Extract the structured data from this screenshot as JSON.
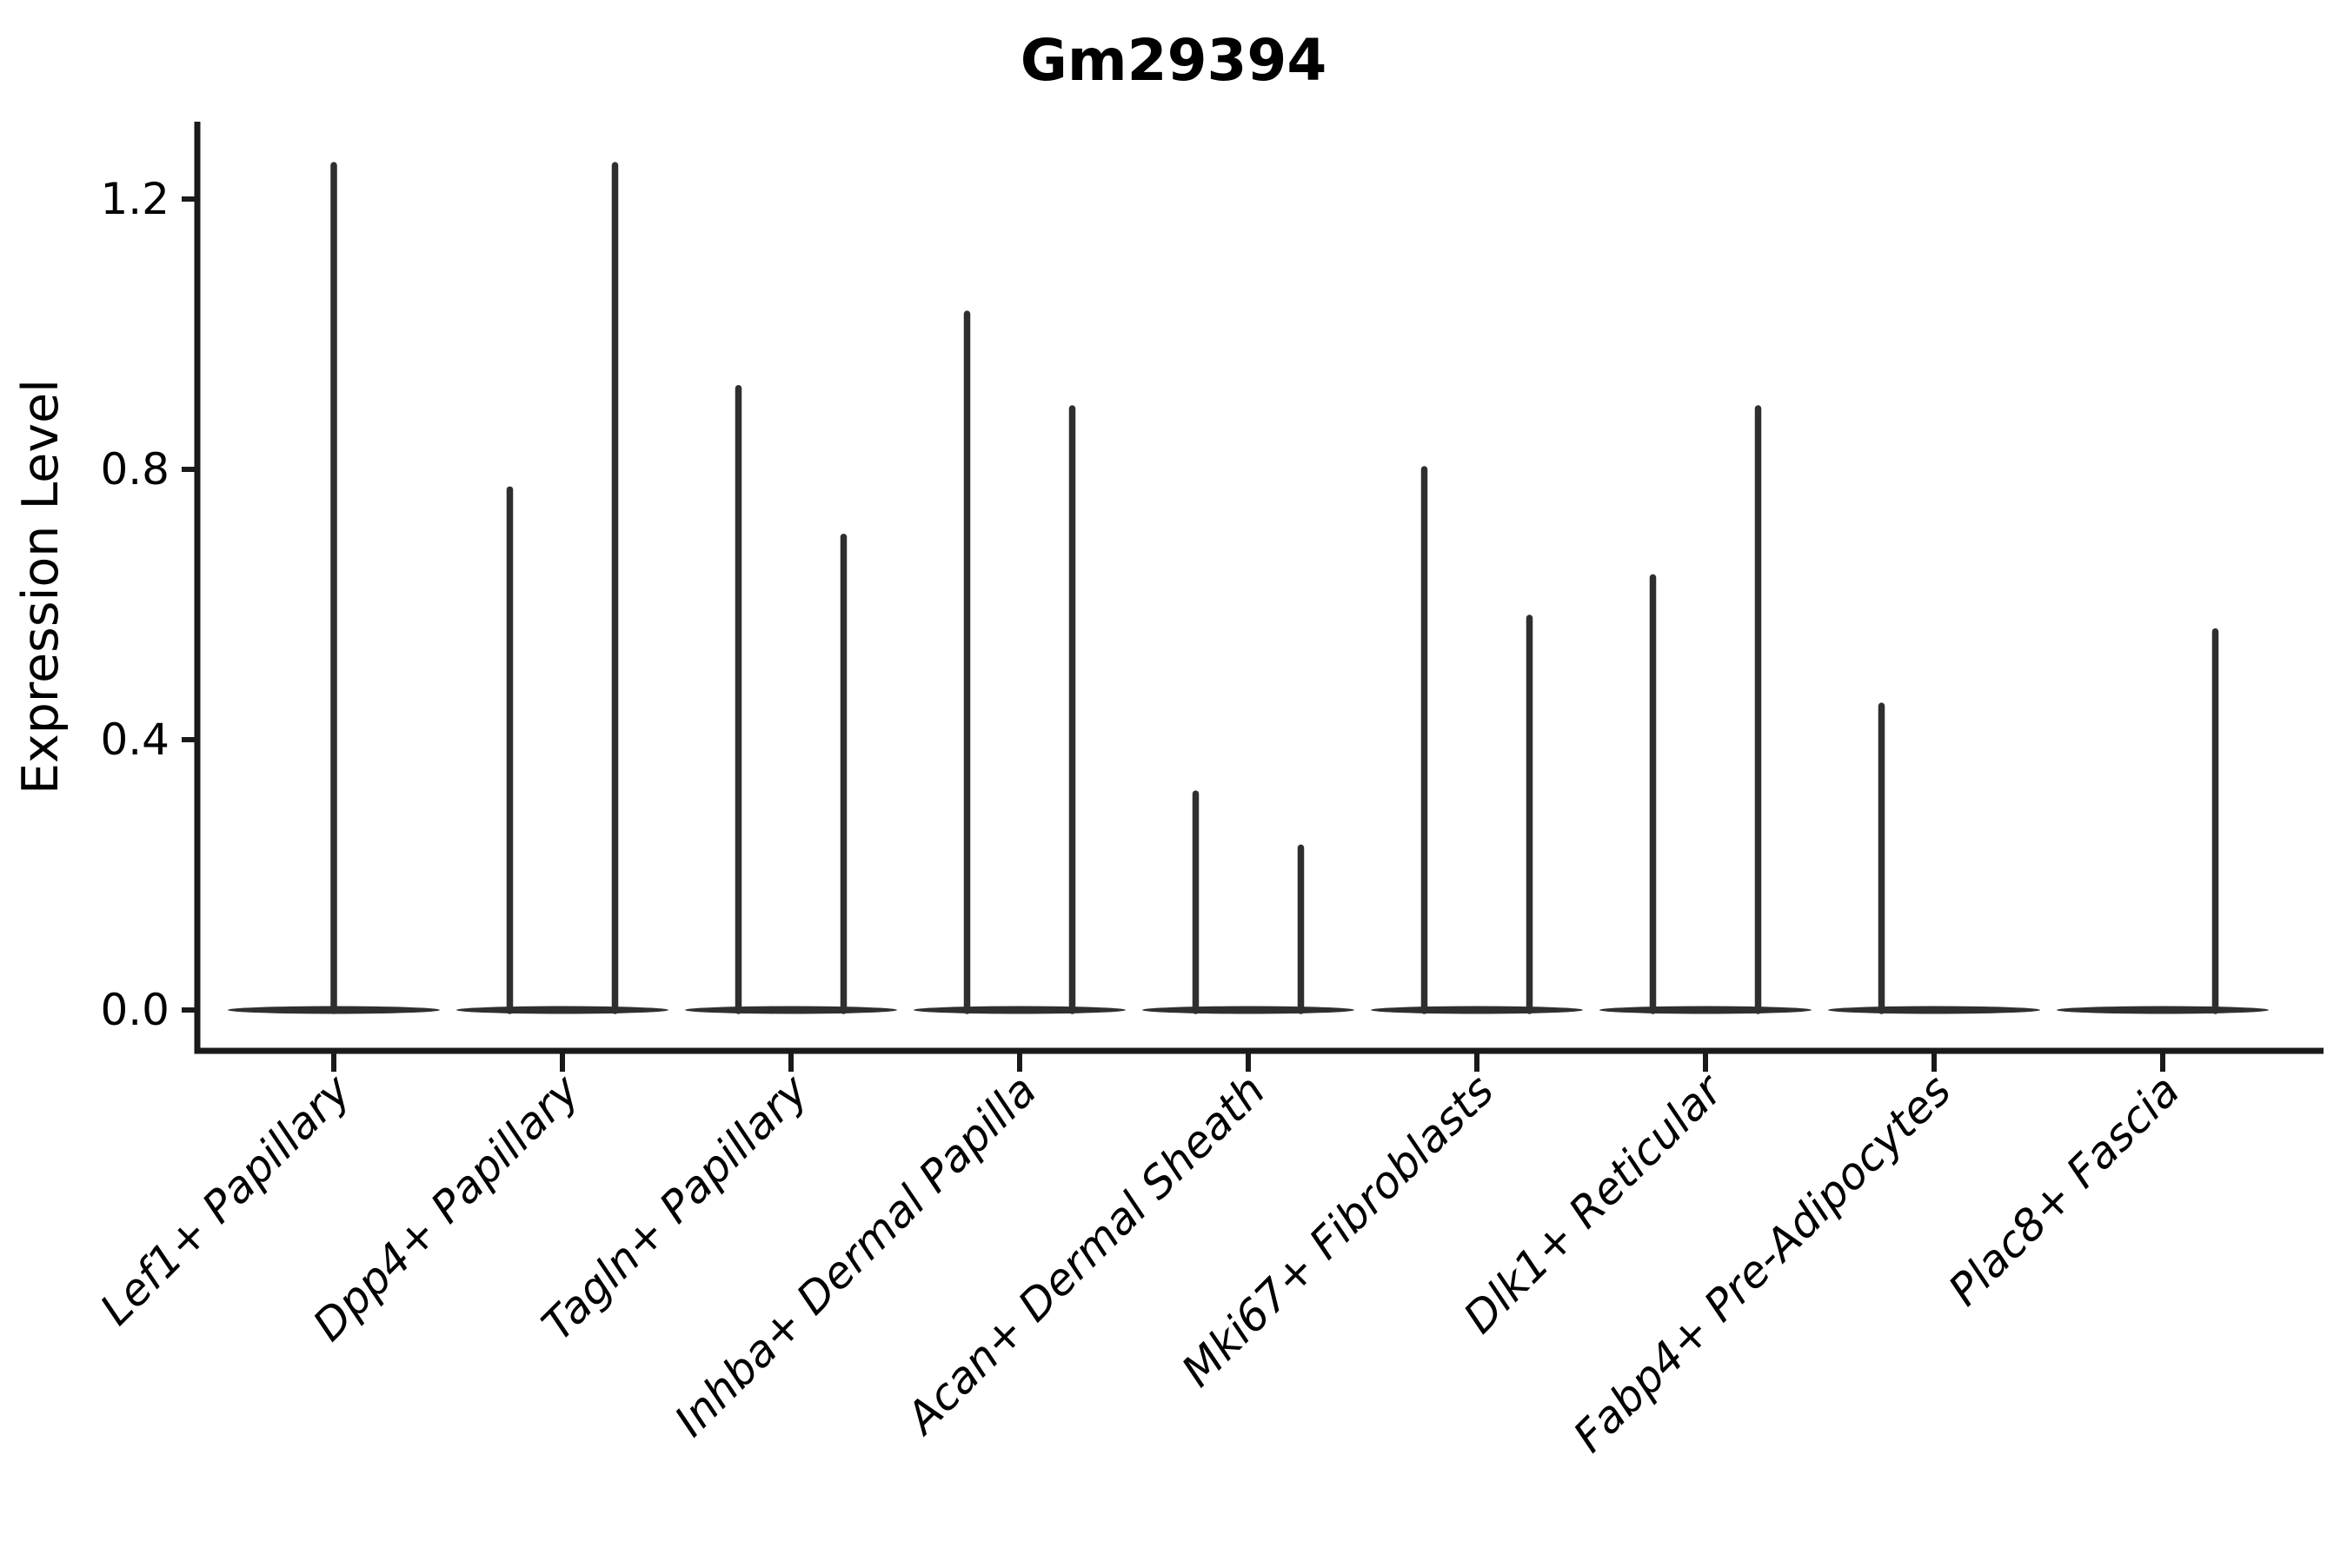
{
  "title": "Gm29394",
  "colors": {
    "ink": "#1a1a1a",
    "violin": "#2f2f2f",
    "background": "#ffffff"
  },
  "chart_data": {
    "type": "violin",
    "title": "Gm29394",
    "xlabel": "",
    "ylabel": "Expression Level",
    "ytick_labels": [
      "0.0",
      "0.4",
      "0.8",
      "1.2"
    ],
    "ylim": [
      -0.06,
      1.32
    ],
    "grid": false,
    "legend": null,
    "categories": [
      "Lef1+ Papillary",
      "Dpp4+ Papillary",
      "Tagln+ Papillary",
      "Inhba+ Dermal Papilla",
      "Acan+ Dermal Sheath",
      "Mki67+ Fibroblasts",
      "Dlk1+ Reticular",
      "Fabp4+ Pre-Adipocytes",
      "Plac8+ Fascia"
    ],
    "baseline_value": 0.0,
    "description": "Violin plot of Gm29394 expression per fibroblast cluster; each violin collapses to a flat band at 0 with thin density spikes rising to the maximum expression value. Most categories show two dodged violins (two groups); Lef1+ Papillary shows a single centered spike, Fabp4+ Pre-Adipocytes only a left-group spike, Plac8+ Fascia only a right-group spike.",
    "violins": [
      {
        "category": "Lef1+ Papillary",
        "spikes": [
          {
            "position": "center",
            "max": 1.25
          }
        ]
      },
      {
        "category": "Dpp4+ Papillary",
        "spikes": [
          {
            "position": "left",
            "max": 0.77
          },
          {
            "position": "right",
            "max": 1.25
          }
        ]
      },
      {
        "category": "Tagln+ Papillary",
        "spikes": [
          {
            "position": "left",
            "max": 0.92
          },
          {
            "position": "right",
            "max": 0.7
          }
        ]
      },
      {
        "category": "Inhba+ Dermal Papilla",
        "spikes": [
          {
            "position": "left",
            "max": 1.03
          },
          {
            "position": "right",
            "max": 0.89
          }
        ]
      },
      {
        "category": "Acan+ Dermal Sheath",
        "spikes": [
          {
            "position": "left",
            "max": 0.32
          },
          {
            "position": "right",
            "max": 0.24
          }
        ]
      },
      {
        "category": "Mki67+ Fibroblasts",
        "spikes": [
          {
            "position": "left",
            "max": 0.8
          },
          {
            "position": "right",
            "max": 0.58
          }
        ]
      },
      {
        "category": "Dlk1+ Reticular",
        "spikes": [
          {
            "position": "left",
            "max": 0.64
          },
          {
            "position": "right",
            "max": 0.89
          }
        ]
      },
      {
        "category": "Fabp4+ Pre-Adipocytes",
        "spikes": [
          {
            "position": "left",
            "max": 0.45
          }
        ]
      },
      {
        "category": "Plac8+ Fascia",
        "spikes": [
          {
            "position": "right",
            "max": 0.56
          }
        ]
      }
    ]
  }
}
